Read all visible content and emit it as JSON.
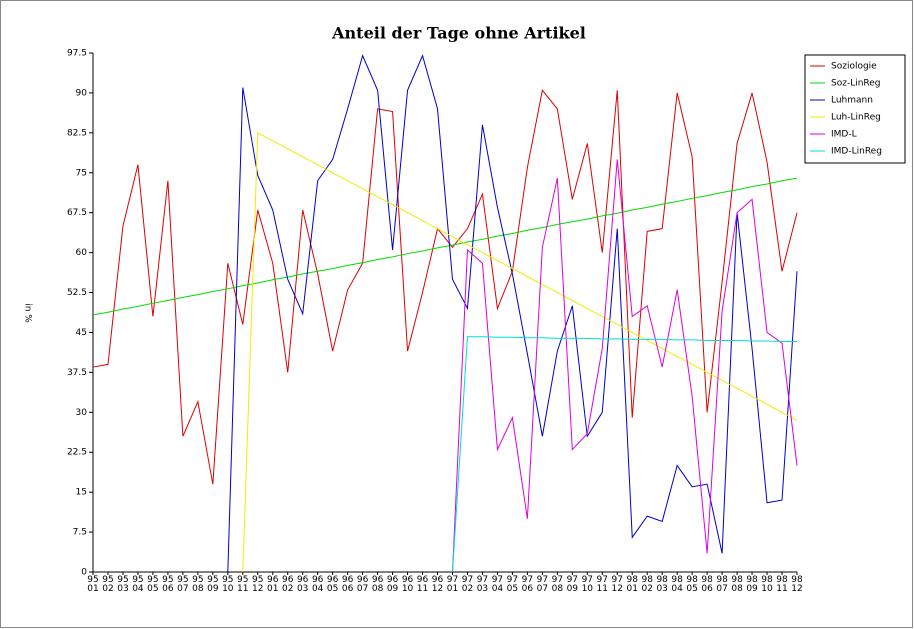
{
  "chart_data": {
    "type": "line",
    "title": "Anteil der Tage ohne Artikel",
    "y_label": "in %",
    "categories": [
      "95 01",
      "95 02",
      "95 03",
      "95 04",
      "95 05",
      "95 06",
      "95 07",
      "95 08",
      "95 09",
      "95 10",
      "95 11",
      "95 12",
      "96 01",
      "96 02",
      "96 03",
      "96 04",
      "96 05",
      "96 06",
      "96 07",
      "96 08",
      "96 09",
      "96 10",
      "96 11",
      "96 12",
      "97 01",
      "97 02",
      "97 03",
      "97 04",
      "97 05",
      "97 06",
      "97 07",
      "97 08",
      "97 09",
      "97 10",
      "97 11",
      "97 12",
      "98 01",
      "98 02",
      "98 03",
      "98 04",
      "98 05",
      "98 06",
      "98 07",
      "98 08",
      "98 09",
      "98 10",
      "98 11",
      "98 12"
    ],
    "ylim": [
      0,
      97.5
    ],
    "yticks": [
      0,
      7.5,
      15,
      22.5,
      30,
      37.5,
      45,
      52.5,
      60,
      67.5,
      75,
      82.5,
      90,
      97.5
    ],
    "legend": "top-right",
    "series": [
      {
        "name": "Soziologie",
        "color": "#dd0000",
        "values": [
          38.5,
          39,
          65,
          76.5,
          48,
          73.5,
          25.5,
          32,
          16.5,
          58,
          46.5,
          68,
          58,
          37.5,
          68,
          56,
          41.5,
          53,
          58,
          87,
          86.5,
          41.5,
          52.5,
          64.5,
          61,
          64.5,
          71,
          49.5,
          56.5,
          76,
          90.5,
          87,
          70,
          80.5,
          60,
          90.5,
          29,
          64,
          64.5,
          90,
          78,
          30,
          54.5,
          80.5,
          90,
          77,
          56.5,
          67.5
        ]
      },
      {
        "name": "Soz-LinReg",
        "color": "#00dd00",
        "values": [
          48.3,
          48.8,
          49.4,
          49.9,
          50.5,
          51.0,
          51.6,
          52.1,
          52.7,
          53.2,
          53.8,
          54.3,
          54.9,
          55.4,
          56.0,
          56.5,
          57.0,
          57.6,
          58.1,
          58.7,
          59.2,
          59.8,
          60.3,
          60.9,
          61.4,
          62.0,
          62.5,
          63.1,
          63.6,
          64.2,
          64.7,
          65.3,
          65.8,
          66.3,
          66.9,
          67.4,
          68.0,
          68.5,
          69.1,
          69.6,
          70.2,
          70.7,
          71.3,
          71.8,
          72.4,
          72.9,
          73.5,
          74.0
        ]
      },
      {
        "name": "Luhmann",
        "color": "#0000cc",
        "values": [
          null,
          null,
          null,
          null,
          null,
          null,
          null,
          null,
          null,
          0,
          91,
          74.5,
          68,
          55,
          48.5,
          73.5,
          77.5,
          87,
          97,
          90.5,
          60.5,
          90.5,
          97,
          87,
          55,
          49.5,
          84,
          68.5,
          56,
          41,
          25.5,
          41.5,
          50,
          25.5,
          30,
          64.5,
          6.5,
          10.5,
          9.5,
          20,
          16,
          16.5,
          3.5,
          67.5,
          42,
          13,
          13.5,
          56.5
        ]
      },
      {
        "name": "Luh-LinReg",
        "color": "#eeee00",
        "values": [
          null,
          null,
          null,
          null,
          null,
          null,
          null,
          null,
          null,
          null,
          0,
          82.5,
          81,
          79.5,
          78,
          76.5,
          75,
          73.5,
          72,
          70.5,
          69,
          67.5,
          66,
          64.5,
          63,
          61.5,
          60,
          58.5,
          57,
          55.5,
          54,
          52.5,
          51,
          49.5,
          48,
          46.5,
          45,
          43.5,
          42,
          40.5,
          39,
          37.5,
          36,
          34.5,
          33,
          31.5,
          30,
          28.5
        ]
      },
      {
        "name": "IMD-L",
        "color": "#dd00dd",
        "values": [
          null,
          null,
          null,
          null,
          null,
          null,
          null,
          null,
          null,
          null,
          null,
          null,
          null,
          null,
          null,
          null,
          null,
          null,
          null,
          null,
          null,
          null,
          null,
          null,
          0,
          60.5,
          58,
          23,
          29,
          10,
          61,
          74,
          23,
          26,
          42,
          77.5,
          48,
          50,
          38.5,
          53,
          33,
          3.5,
          49,
          67.5,
          70,
          45,
          43,
          20
        ]
      },
      {
        "name": "IMD-LinReg",
        "color": "#00dddd",
        "values": [
          null,
          null,
          null,
          null,
          null,
          null,
          null,
          null,
          null,
          null,
          null,
          null,
          null,
          null,
          null,
          null,
          null,
          null,
          null,
          null,
          null,
          null,
          null,
          null,
          0,
          44.2,
          44.2,
          44.1,
          44.1,
          44.0,
          44.0,
          43.9,
          43.9,
          43.9,
          43.8,
          43.8,
          43.7,
          43.7,
          43.7,
          43.6,
          43.6,
          43.5,
          43.5,
          43.5,
          43.4,
          43.4,
          43.3,
          43.3
        ]
      }
    ]
  }
}
